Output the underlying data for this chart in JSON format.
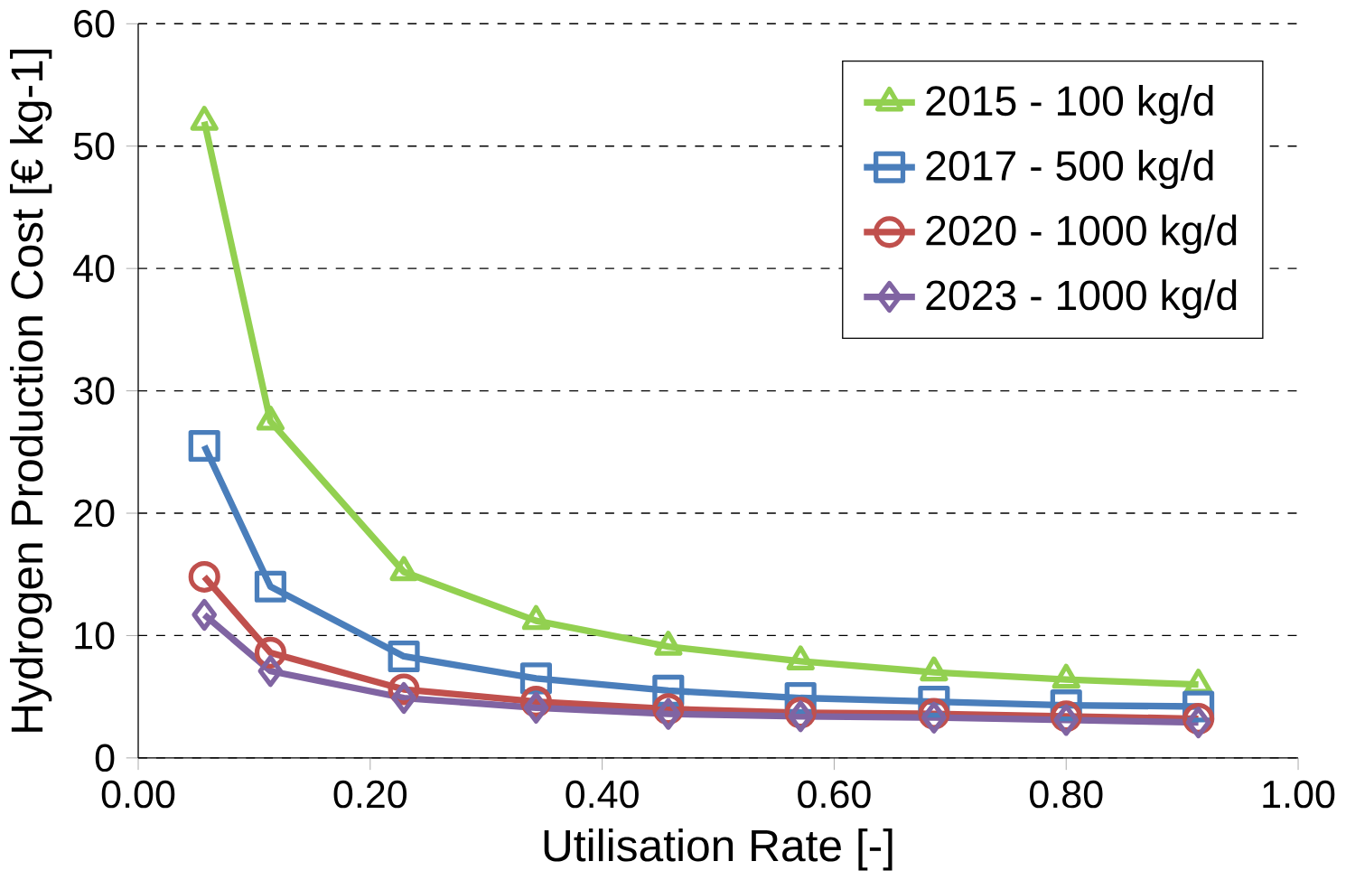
{
  "chart_data": {
    "type": "line",
    "xlabel": "Utilisation Rate [-]",
    "ylabel": "Hydrogen Production Cost  [€ kg-1]",
    "x": [
      0.057,
      0.114,
      0.229,
      0.343,
      0.457,
      0.571,
      0.686,
      0.8,
      0.914
    ],
    "series": [
      {
        "name": "2015 - 100 kg/d",
        "color": "#92d050",
        "marker": "triangle",
        "values": [
          52,
          27.5,
          15.2,
          11.2,
          9.1,
          7.9,
          7.0,
          6.4,
          6.0
        ]
      },
      {
        "name": "2017 - 500 kg/d",
        "color": "#4a7ebb",
        "marker": "square",
        "values": [
          25.5,
          14.0,
          8.3,
          6.5,
          5.5,
          4.9,
          4.6,
          4.3,
          4.2
        ]
      },
      {
        "name": "2020 - 1000 kg/d",
        "color": "#c0504d",
        "marker": "circle",
        "values": [
          14.8,
          8.6,
          5.6,
          4.6,
          4.0,
          3.7,
          3.6,
          3.4,
          3.2
        ]
      },
      {
        "name": "2023 - 1000 kg/d",
        "color": "#8064a2",
        "marker": "diamond",
        "values": [
          11.7,
          7.1,
          4.9,
          4.1,
          3.6,
          3.4,
          3.3,
          3.1,
          2.9
        ]
      }
    ],
    "xlim": [
      0,
      1
    ],
    "xticks": [
      {
        "value": 0,
        "label": "0.00"
      },
      {
        "value": 0.2,
        "label": "0.20"
      },
      {
        "value": 0.4,
        "label": "0.40"
      },
      {
        "value": 0.6,
        "label": "0.60"
      },
      {
        "value": 0.8,
        "label": "0.80"
      },
      {
        "value": 1,
        "label": "1.00"
      }
    ],
    "ylim": [
      0,
      60
    ],
    "yticks": [
      0,
      10,
      20,
      30,
      40,
      50,
      60
    ],
    "grid": "y",
    "legend": "top right",
    "line_style": "solid"
  }
}
